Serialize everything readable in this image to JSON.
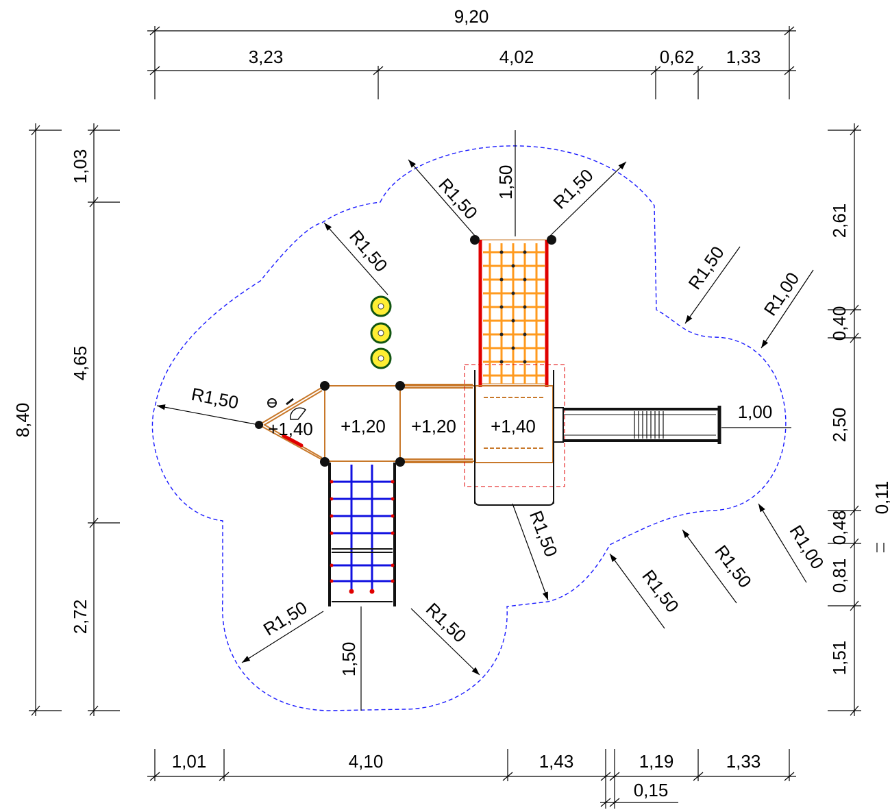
{
  "drawing": {
    "top_dims": {
      "total": "9,20",
      "segments": [
        "3,23",
        "4,02",
        "0,62",
        "1,33"
      ]
    },
    "bottom_dims": {
      "segments": [
        "1,01",
        "4,10",
        "1,43",
        "1,19",
        "1,33"
      ],
      "small": "0,15"
    },
    "left_dims": {
      "total": "8,40",
      "segments": [
        "1,03",
        "4,65",
        "2,72"
      ]
    },
    "right_dims": {
      "segments": [
        "2,61",
        "0,40",
        "2,50",
        "0,48",
        "0,81",
        "1,51"
      ],
      "side": "0,11"
    },
    "radii": {
      "r150": "R1,50",
      "r100": "R1,00"
    },
    "lengths": {
      "top_offset": "1,50",
      "bottom_offset": "1,50",
      "slide_width": "1,00"
    },
    "platform_levels": [
      "+1,40",
      "+1,20",
      "+1,20",
      "+1,40"
    ],
    "colors": {
      "outline": "#1a1aff",
      "frame": "#c8782a",
      "net": "#ff9a1e",
      "post": "#e00000",
      "ladder": "#1010e0",
      "line": "#000000"
    }
  }
}
